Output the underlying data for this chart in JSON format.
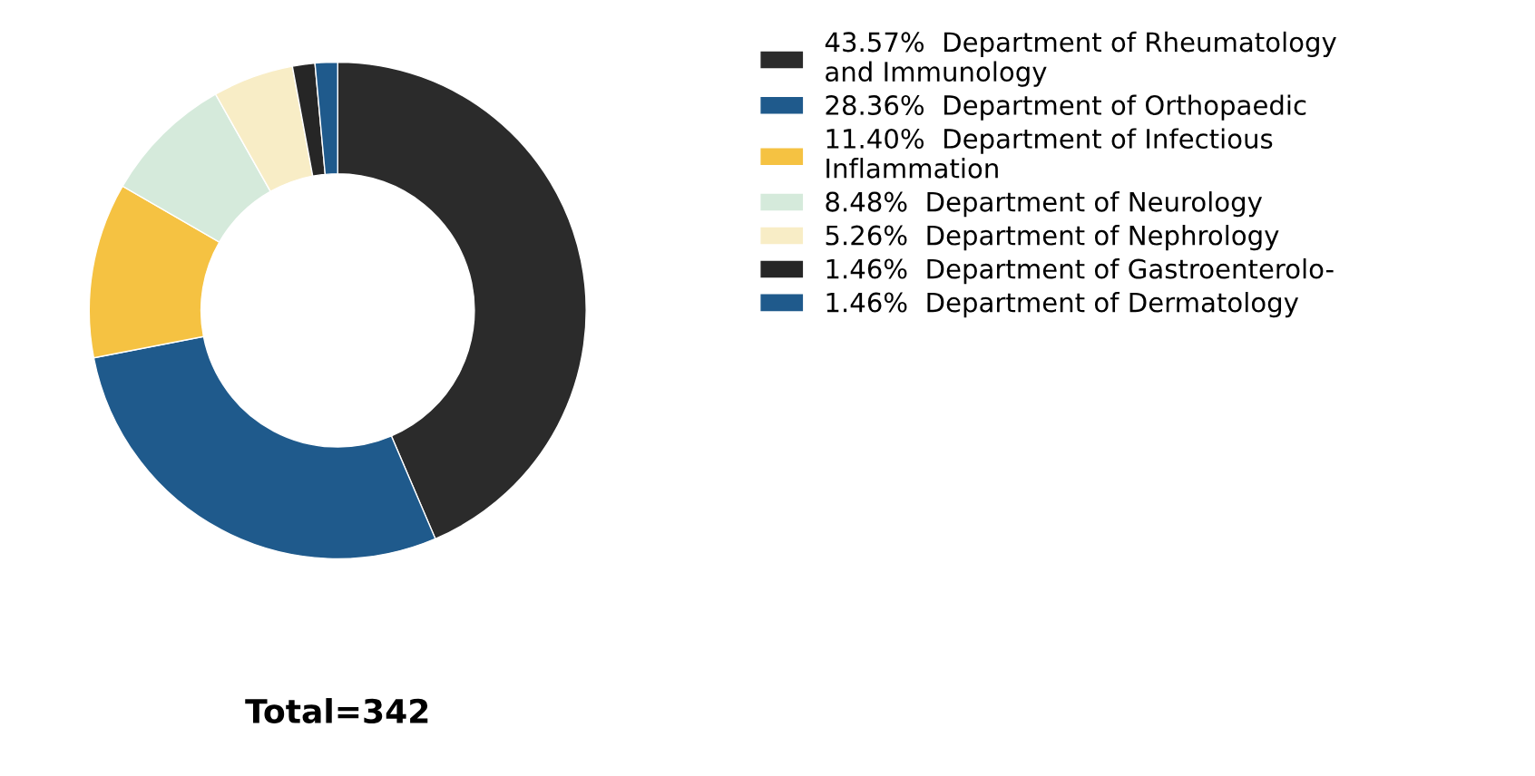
{
  "chart_data": {
    "type": "donut",
    "categories": [
      "Department of Rheumatology\nand Immunology",
      "Department of Orthopaedic",
      "Department of Infectious\nInflammation",
      "Department of Neurology",
      "Department of Nephrology",
      "Department of Gastroenterolo-",
      "Department of Dermatology"
    ],
    "values": [
      43.57,
      28.36,
      11.4,
      8.48,
      5.26,
      1.46,
      1.46
    ],
    "value_labels": [
      "43.57%",
      "28.36%",
      "11.40%",
      "8.48%",
      "5.26%",
      "1.46%",
      "1.46%"
    ],
    "colors": [
      "#2b2b2b",
      "#1f5a8c",
      "#f5c242",
      "#d5eadb",
      "#f8edc6",
      "#262626",
      "#1f5a8c"
    ],
    "legend": "right",
    "annotations": [
      "Total=342"
    ]
  }
}
